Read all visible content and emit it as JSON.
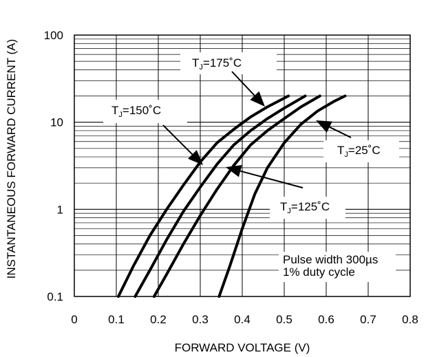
{
  "chart_data": {
    "type": "line",
    "title": "",
    "xlabel": "FORWARD VOLTAGE (V)",
    "ylabel": "INSTANTANEOUS FORWARD CURRENT (A)",
    "xlim": [
      0,
      0.8
    ],
    "ylim": [
      0.1,
      100
    ],
    "yscale": "log",
    "grid": true,
    "x_ticks": [
      "0",
      "0.1",
      "0.2",
      "0.3",
      "0.4",
      "0.5",
      "0.6",
      "0.7",
      "0.8"
    ],
    "y_ticks": [
      "0.1",
      "1",
      "10",
      "100"
    ],
    "series": [
      {
        "label": {
          "prefix": "T",
          "sub": "J",
          "suffix": "=175˚C"
        },
        "x": [
          0.105,
          0.14,
          0.18,
          0.22,
          0.26,
          0.3,
          0.34,
          0.38,
          0.42,
          0.46,
          0.51
        ],
        "y": [
          0.1,
          0.22,
          0.5,
          1.0,
          1.9,
          3.5,
          5.8,
          8.3,
          11.5,
          15.0,
          20.0
        ]
      },
      {
        "label": {
          "prefix": "T",
          "sub": "J",
          "suffix": "=150˚C"
        },
        "x": [
          0.145,
          0.18,
          0.22,
          0.26,
          0.3,
          0.34,
          0.38,
          0.42,
          0.46,
          0.5,
          0.55
        ],
        "y": [
          0.1,
          0.2,
          0.45,
          0.95,
          1.8,
          3.3,
          5.5,
          8.0,
          11.0,
          14.5,
          20.0
        ]
      },
      {
        "label": {
          "prefix": "T",
          "sub": "J",
          "suffix": "=125˚C"
        },
        "x": [
          0.19,
          0.22,
          0.26,
          0.3,
          0.34,
          0.38,
          0.42,
          0.46,
          0.5,
          0.54,
          0.585
        ],
        "y": [
          0.1,
          0.18,
          0.4,
          0.85,
          1.7,
          3.2,
          5.5,
          8.0,
          11.0,
          15.0,
          20.0
        ]
      },
      {
        "label": {
          "prefix": "T",
          "sub": "J",
          "suffix": "=25˚C"
        },
        "x": [
          0.345,
          0.37,
          0.4,
          0.43,
          0.46,
          0.5,
          0.54,
          0.58,
          0.62,
          0.645
        ],
        "y": [
          0.1,
          0.22,
          0.6,
          1.5,
          3.0,
          5.8,
          9.5,
          13.5,
          17.5,
          20.0
        ]
      }
    ],
    "annotation": [
      "Pulse width 300µs",
      "1% duty cycle"
    ]
  }
}
